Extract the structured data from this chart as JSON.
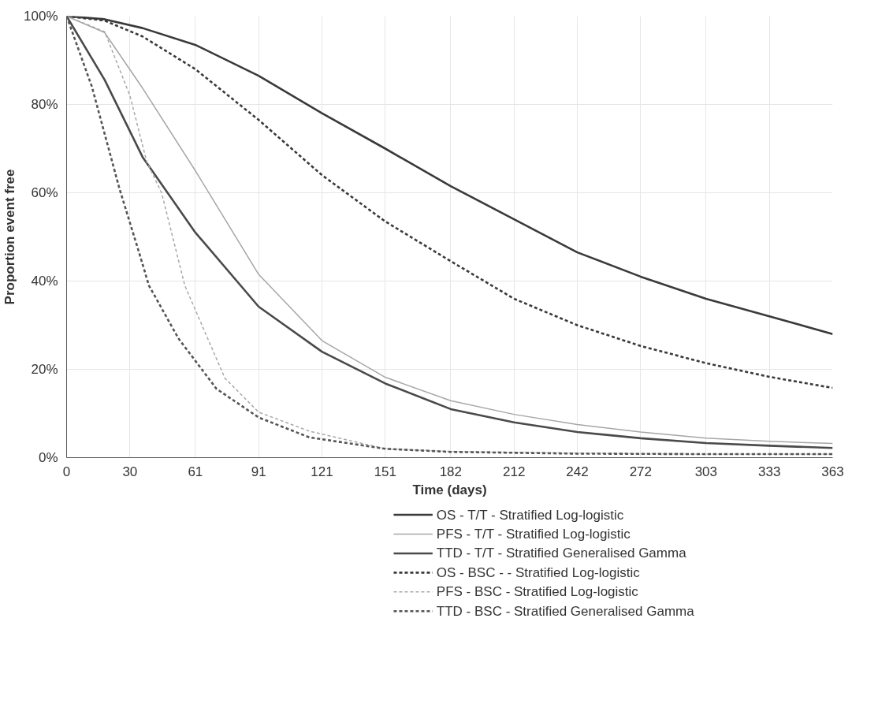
{
  "chart_data": {
    "type": "line",
    "xlabel": "Time (days)",
    "ylabel": "Proportion event free",
    "xlim": [
      0,
      363
    ],
    "xticks": [
      0,
      30,
      61,
      91,
      121,
      151,
      182,
      212,
      242,
      272,
      303,
      333,
      363
    ],
    "ylim": [
      0,
      100
    ],
    "yticks": [
      {
        "value": 0,
        "label": "0%"
      },
      {
        "value": 20,
        "label": "20%"
      },
      {
        "value": 40,
        "label": "40%"
      },
      {
        "value": 60,
        "label": "60%"
      },
      {
        "value": 80,
        "label": "80%"
      },
      {
        "value": 100,
        "label": "100%"
      }
    ],
    "grid": true,
    "legend": "bottom",
    "marker": "none",
    "series": [
      {
        "name": "OS - T/T - Stratified Log-logistic",
        "color": "#3a3a3a",
        "line_style": "solid",
        "x": [
          0,
          18,
          36,
          61,
          91,
          121,
          151,
          182,
          212,
          242,
          272,
          303,
          333,
          363
        ],
        "values": [
          100,
          99.3,
          97.3,
          93.5,
          86.5,
          78,
          70,
          61.5,
          54,
          46.5,
          41,
          36,
          32,
          28
        ]
      },
      {
        "name": "PFS - T/T - Stratified Log-logistic",
        "color": "#a6a6a6",
        "line_style": "solid",
        "x": [
          0,
          18,
          36,
          61,
          91,
          121,
          151,
          182,
          212,
          242,
          272,
          303,
          333,
          363
        ],
        "values": [
          100,
          96.3,
          83.7,
          65,
          41.5,
          26.5,
          18.2,
          12.9,
          9.8,
          7.5,
          5.8,
          4.4,
          3.7,
          3.2
        ]
      },
      {
        "name": "TTD - T/T - Stratified Generalised Gamma",
        "color": "#4a4a4a",
        "line_style": "solid",
        "x": [
          0,
          18,
          36,
          61,
          91,
          121,
          151,
          182,
          212,
          242,
          272,
          303,
          333,
          363
        ],
        "values": [
          100,
          85.6,
          68.1,
          51,
          34.2,
          24,
          16.8,
          11,
          8,
          5.8,
          4.4,
          3.3,
          2.7,
          2.2
        ]
      },
      {
        "name": "OS - BSC -  - Stratified Log-logistic",
        "color": "#3a3a3a",
        "line_style": "dashed",
        "x": [
          0,
          18,
          36,
          61,
          91,
          121,
          151,
          182,
          212,
          242,
          272,
          303,
          333,
          363
        ],
        "values": [
          100,
          99,
          95.4,
          88,
          76.5,
          64,
          53.5,
          44.5,
          36,
          30,
          25.3,
          21.4,
          18.3,
          15.8
        ]
      },
      {
        "name": "PFS - BSC - Stratified Log-logistic",
        "color": "#a8a8a8",
        "line_style": "dashed",
        "x": [
          0,
          18,
          30,
          38,
          45,
          56,
          75,
          91,
          115,
          151,
          182,
          242,
          303,
          363
        ],
        "values": [
          100,
          96.5,
          82,
          67,
          60,
          39,
          18,
          10.3,
          6,
          2,
          1.4,
          1,
          0.8,
          0.8
        ]
      },
      {
        "name": "TTD - BSC - Stratified Generalised Gamma",
        "color": "#555555",
        "line_style": "dashed",
        "x": [
          0,
          12,
          25,
          34,
          39,
          53,
          71,
          91,
          115,
          151,
          182,
          242,
          303,
          363
        ],
        "values": [
          100,
          84,
          61,
          47,
          39,
          27,
          15.6,
          9.1,
          4.6,
          2,
          1.3,
          0.9,
          0.8,
          0.8
        ]
      }
    ]
  }
}
